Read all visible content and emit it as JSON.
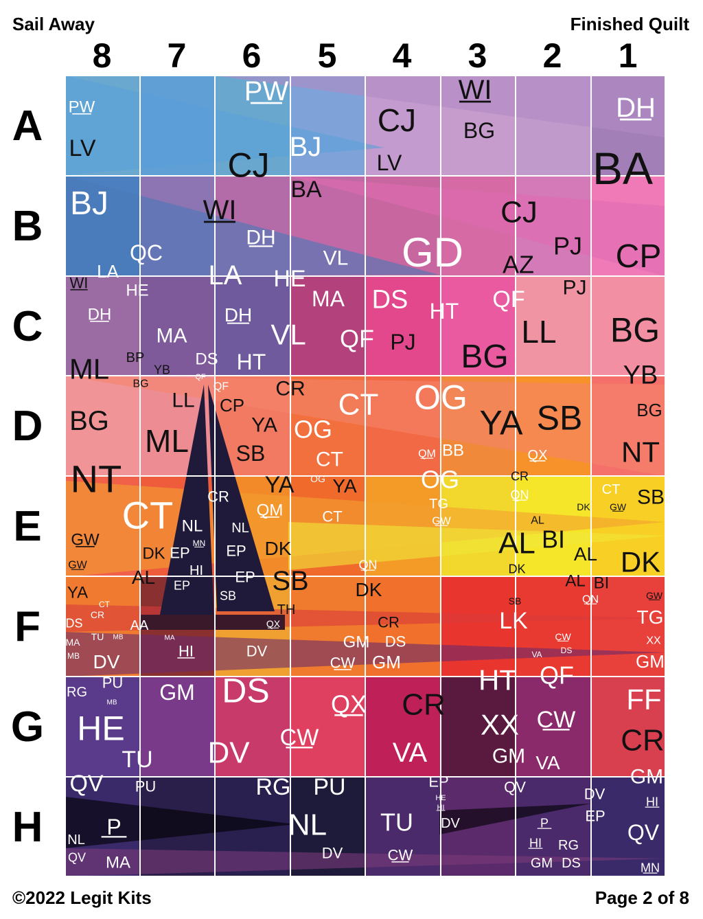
{
  "header": {
    "title": "Sail Away",
    "subtitle": "Finished Quilt"
  },
  "footer": {
    "copyright": "©2022 Legit Kits",
    "page": "Page 2 of 8"
  },
  "column_labels": [
    "8",
    "7",
    "6",
    "5",
    "4",
    "3",
    "2",
    "1"
  ],
  "row_labels": [
    "A",
    "B",
    "C",
    "D",
    "E",
    "F",
    "G",
    "H"
  ],
  "cell_colors": [
    [
      "#6aa8d0",
      "#5f9fd6",
      "#6aa7cf",
      "#7fa3d8",
      "#c49bce",
      "#c69ccd",
      "#c09acb",
      "#a27fb6"
    ],
    [
      "#4c7fbf",
      "#8d74b2",
      "#b46ca8",
      "#c169a6",
      "#c8679f",
      "#d56aa5",
      "#d47ab8",
      "#f07ab8"
    ],
    [
      "#9a6ca3",
      "#7e5a9a",
      "#6e5a9c",
      "#b3427c",
      "#e3488c",
      "#e95aa0",
      "#f093a3",
      "#f38fa2"
    ],
    [
      "#f09497",
      "#ed8c93",
      "#f27a63",
      "#f1703e",
      "#f26a45",
      "#f08a3a",
      "#f7922a",
      "#f5706a"
    ],
    [
      "#f16048",
      "#ee5c3c",
      "#f28a2a",
      "#ef6a2b",
      "#f39a27",
      "#f2d82c",
      "#f6e62a",
      "#f8d025"
    ],
    [
      "#f07a30",
      "#8a3030",
      "#f0a030",
      "#f07a2e",
      "#f0702c",
      "#e8352e",
      "#e83a30",
      "#e8403a"
    ],
    [
      "#5a3a8a",
      "#7a3a8a",
      "#c83a6a",
      "#e04060",
      "#c02058",
      "#5a1a40",
      "#8a2a6a",
      "#d84050"
    ],
    [
      "#3a2a6a",
      "#2a1e4a",
      "#2a2050",
      "#1e1a3a",
      "#4a2a6a",
      "#5a2a6a",
      "#4a2a6a",
      "#3a2a6a"
    ]
  ],
  "sail_color": "#1f1a3a",
  "patches": [
    "PW",
    "LV",
    "PW",
    "CJ",
    "BJ",
    "CJ",
    "LV",
    "WI",
    "BG",
    "DH",
    "BA",
    "BJ",
    "WI",
    "BA",
    "QC",
    "LA",
    "DH",
    "LA",
    "HE",
    "VL",
    "GD",
    "CJ",
    "PJ",
    "AZ",
    "CP",
    "WI",
    "HE",
    "DH",
    "MA",
    "DH",
    "VL",
    "MA",
    "DS",
    "HT",
    "QF",
    "PJ",
    "QF",
    "PJ",
    "LL",
    "BG",
    "BG",
    "ML",
    "BP",
    "YB",
    "DS",
    "HT",
    "YB",
    "BG",
    "QF",
    "QF",
    "LL",
    "CP",
    "CR",
    "CT",
    "OG",
    "BG",
    "BG",
    "ML",
    "YA",
    "OG",
    "YA",
    "SB",
    "SB",
    "CT",
    "QM",
    "BB",
    "QX",
    "NT",
    "NT",
    "CR",
    "YA",
    "OG",
    "YA",
    "OG",
    "CR",
    "CT",
    "QM",
    "TG",
    "QN",
    "CT",
    "DK",
    "GW",
    "SB",
    "NL",
    "NL",
    "CT",
    "GW",
    "AL",
    "GW",
    "DK",
    "EP",
    "MN",
    "EP",
    "DK",
    "AL",
    "BI",
    "AL",
    "DK",
    "GW",
    "HI",
    "EP",
    "QN",
    "DK",
    "AL",
    "SB",
    "EP",
    "DK",
    "AL",
    "BI",
    "YA",
    "SB",
    "GW",
    "QN",
    "SB",
    "TH",
    "DS",
    "AA",
    "LK",
    "TG",
    "QX",
    "CR",
    "CT",
    "CR",
    "MA",
    "TU",
    "MB",
    "MA",
    "GM",
    "DS",
    "CW",
    "XX",
    "MB",
    "DV",
    "HI",
    "DV",
    "CW",
    "GM",
    "DS",
    "VA",
    "GM",
    "RG",
    "PU",
    "MB",
    "GM",
    "DS",
    "QX",
    "CR",
    "HT",
    "QF",
    "FF",
    "HE",
    "XX",
    "CW",
    "CR",
    "CW",
    "DV",
    "TU",
    "VA",
    "GM",
    "VA",
    "GM",
    "QV",
    "PU",
    "RG",
    "PU",
    "EP",
    "HE",
    "HI",
    "QV",
    "DV",
    "HI",
    "EP",
    "P",
    "NL",
    "TU",
    "DV",
    "P",
    "QV",
    "NL",
    "HI",
    "RG",
    "QV",
    "MA",
    "DV",
    "CW",
    "GM",
    "DS",
    "MN"
  ]
}
